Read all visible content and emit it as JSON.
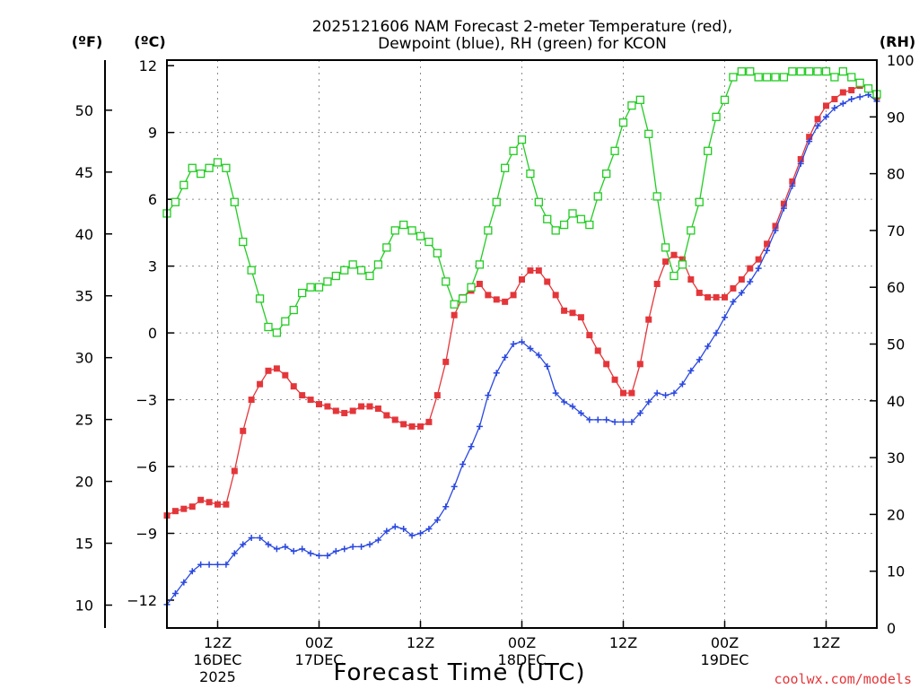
{
  "chart_data": {
    "type": "line",
    "title_line1": "2025121606 NAM Forecast 2-meter Temperature (red),",
    "title_line2": "Dewpoint (blue), RH (green) for KCON",
    "left_outer_unit": "(ºF)",
    "left_inner_unit": "(ºC)",
    "right_unit": "(RH)",
    "xlabel": "Forecast Time (UTC)",
    "credit": "coolwx.com/models",
    "ylim_c": [
      -13.25,
      12.25
    ],
    "ylim_rh": [
      0,
      100
    ],
    "ylim_f_ticks": [
      10,
      15,
      20,
      25,
      30,
      35,
      40,
      45,
      50
    ],
    "c_ticks": [
      -12,
      -9,
      -6,
      -3,
      0,
      3,
      6,
      9,
      12
    ],
    "c_tick_labels": [
      "−12",
      "−9",
      "−6",
      "−3",
      "0",
      "3",
      "6",
      "9",
      "12"
    ],
    "rh_ticks": [
      0,
      10,
      20,
      30,
      40,
      50,
      60,
      70,
      80,
      90,
      100
    ],
    "x_unit": "forecast hour",
    "xlim": [
      6,
      90
    ],
    "x_ticks": [
      {
        "hour": 12,
        "line1": "12Z",
        "line2": "16DEC",
        "line3": "2025"
      },
      {
        "hour": 24,
        "line1": "00Z",
        "line2": "17DEC",
        "line3": ""
      },
      {
        "hour": 36,
        "line1": "12Z",
        "line2": "",
        "line3": ""
      },
      {
        "hour": 48,
        "line1": "00Z",
        "line2": "18DEC",
        "line3": ""
      },
      {
        "hour": 60,
        "line1": "12Z",
        "line2": "",
        "line3": ""
      },
      {
        "hour": 72,
        "line1": "00Z",
        "line2": "19DEC",
        "line3": ""
      },
      {
        "hour": 84,
        "line1": "12Z",
        "line2": "",
        "line3": ""
      }
    ],
    "grid": true,
    "colors": {
      "temperature": "#e4363a",
      "dewpoint": "#2a48e0",
      "rh": "#22cc22"
    },
    "series": [
      {
        "name": "Temperature (red)",
        "axis": "c",
        "marker": "filled-square",
        "points": [
          [
            6,
            -8.2
          ],
          [
            7,
            -8.0
          ],
          [
            8,
            -7.9
          ],
          [
            9,
            -7.8
          ],
          [
            10,
            -7.5
          ],
          [
            11,
            -7.6
          ],
          [
            12,
            -7.7
          ],
          [
            13,
            -7.7
          ],
          [
            14,
            -6.2
          ],
          [
            15,
            -4.4
          ],
          [
            16,
            -3.0
          ],
          [
            17,
            -2.3
          ],
          [
            18,
            -1.7
          ],
          [
            19,
            -1.6
          ],
          [
            20,
            -1.9
          ],
          [
            21,
            -2.4
          ],
          [
            22,
            -2.8
          ],
          [
            23,
            -3.0
          ],
          [
            24,
            -3.2
          ],
          [
            25,
            -3.3
          ],
          [
            26,
            -3.5
          ],
          [
            27,
            -3.6
          ],
          [
            28,
            -3.5
          ],
          [
            29,
            -3.3
          ],
          [
            30,
            -3.3
          ],
          [
            31,
            -3.4
          ],
          [
            32,
            -3.7
          ],
          [
            33,
            -3.9
          ],
          [
            34,
            -4.1
          ],
          [
            35,
            -4.2
          ],
          [
            36,
            -4.2
          ],
          [
            37,
            -4.0
          ],
          [
            38,
            -2.8
          ],
          [
            39,
            -1.3
          ],
          [
            40,
            0.8
          ],
          [
            41,
            1.6
          ],
          [
            42,
            1.9
          ],
          [
            43,
            2.2
          ],
          [
            44,
            1.7
          ],
          [
            45,
            1.5
          ],
          [
            46,
            1.4
          ],
          [
            47,
            1.7
          ],
          [
            48,
            2.4
          ],
          [
            49,
            2.8
          ],
          [
            50,
            2.8
          ],
          [
            51,
            2.3
          ],
          [
            52,
            1.7
          ],
          [
            53,
            1.0
          ],
          [
            54,
            0.9
          ],
          [
            55,
            0.7
          ],
          [
            56,
            -0.1
          ],
          [
            57,
            -0.8
          ],
          [
            58,
            -1.4
          ],
          [
            59,
            -2.1
          ],
          [
            60,
            -2.7
          ],
          [
            61,
            -2.7
          ],
          [
            62,
            -1.4
          ],
          [
            63,
            0.6
          ],
          [
            64,
            2.2
          ],
          [
            65,
            3.2
          ],
          [
            66,
            3.5
          ],
          [
            67,
            3.3
          ],
          [
            68,
            2.4
          ],
          [
            69,
            1.8
          ],
          [
            70,
            1.6
          ],
          [
            71,
            1.6
          ],
          [
            72,
            1.6
          ],
          [
            73,
            2.0
          ],
          [
            74,
            2.4
          ],
          [
            75,
            2.9
          ],
          [
            76,
            3.3
          ],
          [
            77,
            4.0
          ],
          [
            78,
            4.8
          ],
          [
            79,
            5.8
          ],
          [
            80,
            6.8
          ],
          [
            81,
            7.8
          ],
          [
            82,
            8.8
          ],
          [
            83,
            9.6
          ],
          [
            84,
            10.2
          ],
          [
            85,
            10.5
          ],
          [
            86,
            10.8
          ],
          [
            87,
            10.9
          ],
          [
            88,
            11.1
          ],
          [
            89,
            11.0
          ],
          [
            90,
            10.6
          ]
        ]
      },
      {
        "name": "Dewpoint (blue)",
        "axis": "c",
        "marker": "plus",
        "points": [
          [
            6,
            -12.2
          ],
          [
            7,
            -11.7
          ],
          [
            8,
            -11.2
          ],
          [
            9,
            -10.7
          ],
          [
            10,
            -10.4
          ],
          [
            11,
            -10.4
          ],
          [
            12,
            -10.4
          ],
          [
            13,
            -10.4
          ],
          [
            14,
            -9.9
          ],
          [
            15,
            -9.5
          ],
          [
            16,
            -9.2
          ],
          [
            17,
            -9.2
          ],
          [
            18,
            -9.5
          ],
          [
            19,
            -9.7
          ],
          [
            20,
            -9.6
          ],
          [
            21,
            -9.8
          ],
          [
            22,
            -9.7
          ],
          [
            23,
            -9.9
          ],
          [
            24,
            -10.0
          ],
          [
            25,
            -10.0
          ],
          [
            26,
            -9.8
          ],
          [
            27,
            -9.7
          ],
          [
            28,
            -9.6
          ],
          [
            29,
            -9.6
          ],
          [
            30,
            -9.5
          ],
          [
            31,
            -9.3
          ],
          [
            32,
            -8.9
          ],
          [
            33,
            -8.7
          ],
          [
            34,
            -8.8
          ],
          [
            35,
            -9.1
          ],
          [
            36,
            -9.0
          ],
          [
            37,
            -8.8
          ],
          [
            38,
            -8.4
          ],
          [
            39,
            -7.8
          ],
          [
            40,
            -6.9
          ],
          [
            41,
            -5.9
          ],
          [
            42,
            -5.1
          ],
          [
            43,
            -4.2
          ],
          [
            44,
            -2.8
          ],
          [
            45,
            -1.8
          ],
          [
            46,
            -1.1
          ],
          [
            47,
            -0.5
          ],
          [
            48,
            -0.4
          ],
          [
            49,
            -0.7
          ],
          [
            50,
            -1.0
          ],
          [
            51,
            -1.5
          ],
          [
            52,
            -2.7
          ],
          [
            53,
            -3.1
          ],
          [
            54,
            -3.3
          ],
          [
            55,
            -3.6
          ],
          [
            56,
            -3.9
          ],
          [
            57,
            -3.9
          ],
          [
            58,
            -3.9
          ],
          [
            59,
            -4.0
          ],
          [
            60,
            -4.0
          ],
          [
            61,
            -4.0
          ],
          [
            62,
            -3.6
          ],
          [
            63,
            -3.1
          ],
          [
            64,
            -2.7
          ],
          [
            65,
            -2.8
          ],
          [
            66,
            -2.7
          ],
          [
            67,
            -2.3
          ],
          [
            68,
            -1.7
          ],
          [
            69,
            -1.2
          ],
          [
            70,
            -0.6
          ],
          [
            71,
            0.0
          ],
          [
            72,
            0.7
          ],
          [
            73,
            1.4
          ],
          [
            74,
            1.8
          ],
          [
            75,
            2.3
          ],
          [
            76,
            2.9
          ],
          [
            77,
            3.7
          ],
          [
            78,
            4.6
          ],
          [
            79,
            5.6
          ],
          [
            80,
            6.6
          ],
          [
            81,
            7.6
          ],
          [
            82,
            8.6
          ],
          [
            83,
            9.3
          ],
          [
            84,
            9.7
          ],
          [
            85,
            10.1
          ],
          [
            86,
            10.3
          ],
          [
            87,
            10.5
          ],
          [
            88,
            10.6
          ],
          [
            89,
            10.7
          ],
          [
            90,
            10.4
          ]
        ]
      },
      {
        "name": "RH (green)",
        "axis": "rh",
        "marker": "open-square",
        "points": [
          [
            6,
            73
          ],
          [
            7,
            75
          ],
          [
            8,
            78
          ],
          [
            9,
            81
          ],
          [
            10,
            80
          ],
          [
            11,
            81
          ],
          [
            12,
            82
          ],
          [
            13,
            81
          ],
          [
            14,
            75
          ],
          [
            15,
            68
          ],
          [
            16,
            63
          ],
          [
            17,
            58
          ],
          [
            18,
            53
          ],
          [
            19,
            52
          ],
          [
            20,
            54
          ],
          [
            21,
            56
          ],
          [
            22,
            59
          ],
          [
            23,
            60
          ],
          [
            24,
            60
          ],
          [
            25,
            61
          ],
          [
            26,
            62
          ],
          [
            27,
            63
          ],
          [
            28,
            64
          ],
          [
            29,
            63
          ],
          [
            30,
            62
          ],
          [
            31,
            64
          ],
          [
            32,
            67
          ],
          [
            33,
            70
          ],
          [
            34,
            71
          ],
          [
            35,
            70
          ],
          [
            36,
            69
          ],
          [
            37,
            68
          ],
          [
            38,
            66
          ],
          [
            39,
            61
          ],
          [
            40,
            57
          ],
          [
            41,
            58
          ],
          [
            42,
            60
          ],
          [
            43,
            64
          ],
          [
            44,
            70
          ],
          [
            45,
            75
          ],
          [
            46,
            81
          ],
          [
            47,
            84
          ],
          [
            48,
            86
          ],
          [
            49,
            80
          ],
          [
            50,
            75
          ],
          [
            51,
            72
          ],
          [
            52,
            70
          ],
          [
            53,
            71
          ],
          [
            54,
            73
          ],
          [
            55,
            72
          ],
          [
            56,
            71
          ],
          [
            57,
            76
          ],
          [
            58,
            80
          ],
          [
            59,
            84
          ],
          [
            60,
            89
          ],
          [
            61,
            92
          ],
          [
            62,
            93
          ],
          [
            63,
            87
          ],
          [
            64,
            76
          ],
          [
            65,
            67
          ],
          [
            66,
            62
          ],
          [
            67,
            64
          ],
          [
            68,
            70
          ],
          [
            69,
            75
          ],
          [
            70,
            84
          ],
          [
            71,
            90
          ],
          [
            72,
            93
          ],
          [
            73,
            97
          ],
          [
            74,
            98
          ],
          [
            75,
            98
          ],
          [
            76,
            97
          ],
          [
            77,
            97
          ],
          [
            78,
            97
          ],
          [
            79,
            97
          ],
          [
            80,
            98
          ],
          [
            81,
            98
          ],
          [
            82,
            98
          ],
          [
            83,
            98
          ],
          [
            84,
            98
          ],
          [
            85,
            97
          ],
          [
            86,
            98
          ],
          [
            87,
            97
          ],
          [
            88,
            96
          ],
          [
            89,
            95
          ],
          [
            90,
            94
          ]
        ]
      }
    ]
  }
}
